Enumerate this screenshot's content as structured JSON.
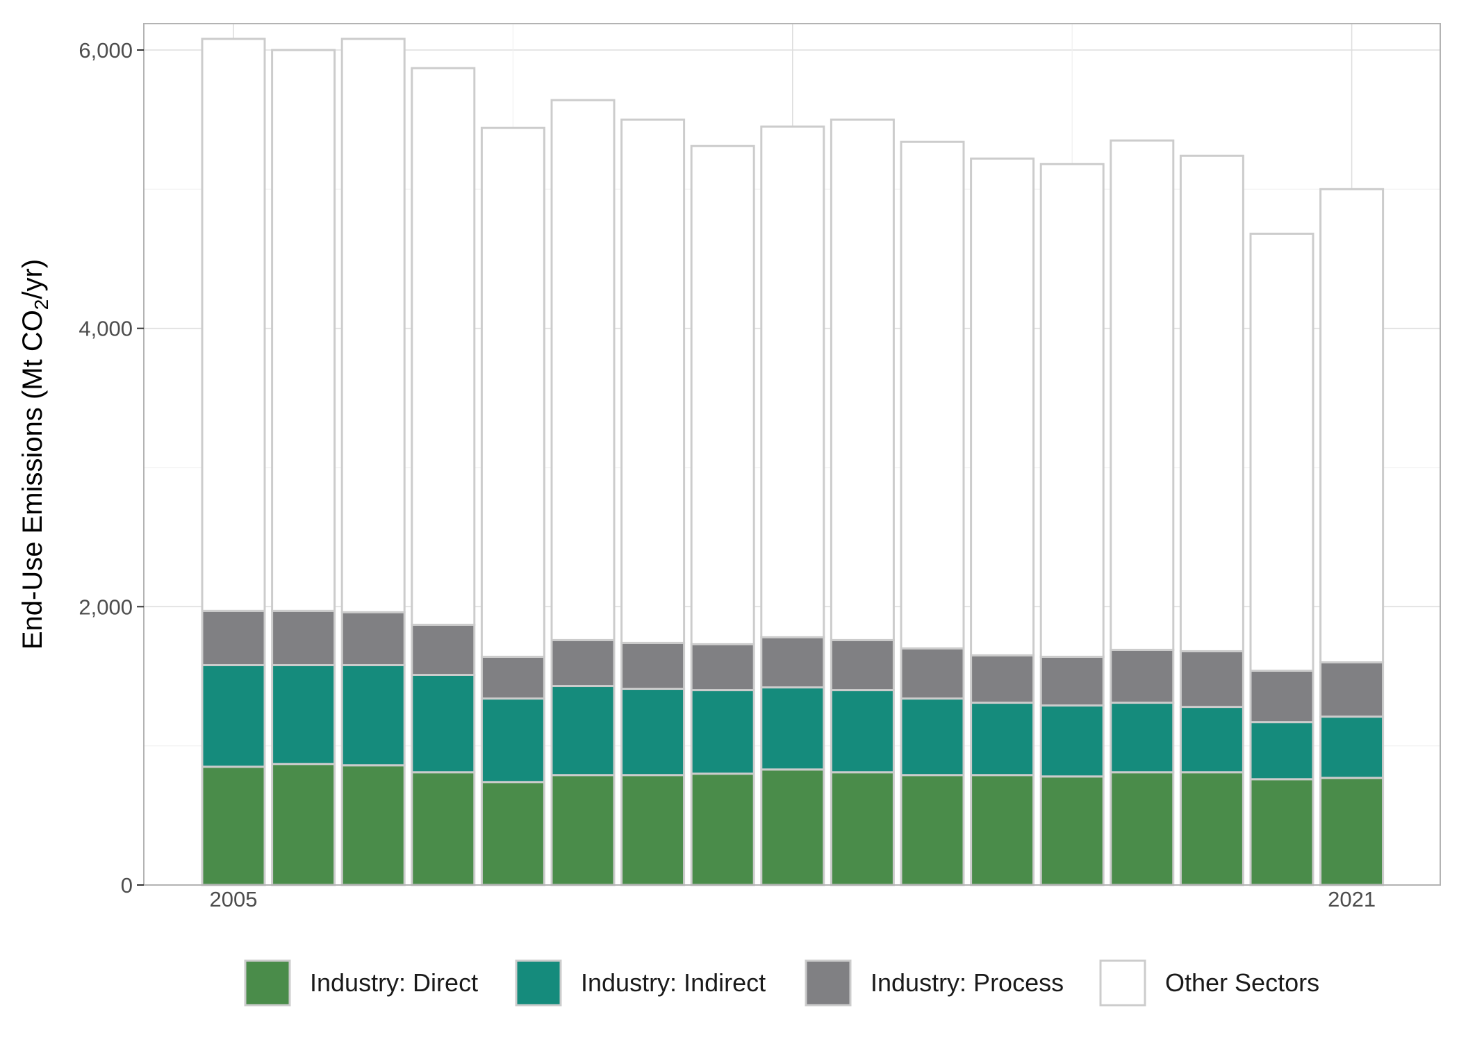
{
  "chart_data": {
    "type": "bar",
    "stacked": true,
    "ylabel": {
      "prefix": "End-Use Emissions (Mt CO",
      "subscript": "2",
      "suffix": "/yr)"
    },
    "xlabel": "",
    "ylim": [
      0,
      6200
    ],
    "yticks": [
      0,
      2000,
      4000,
      6000
    ],
    "ytick_labels": [
      "0",
      "2,000",
      "4,000",
      "6,000"
    ],
    "categories": [
      2005,
      2006,
      2007,
      2008,
      2009,
      2010,
      2011,
      2012,
      2013,
      2014,
      2015,
      2016,
      2017,
      2018,
      2019,
      2020,
      2021
    ],
    "xtick_labels": [
      {
        "year": 2005,
        "label": "2005"
      },
      {
        "year": 2021,
        "label": "2021"
      }
    ],
    "grid": true,
    "legend_position": "bottom",
    "series": [
      {
        "name": "Industry: Direct",
        "color": "#4a8c4a",
        "values": [
          850,
          870,
          860,
          810,
          740,
          790,
          790,
          800,
          830,
          810,
          790,
          790,
          780,
          810,
          810,
          760,
          770
        ]
      },
      {
        "name": "Industry: Indirect",
        "color": "#158b7c",
        "values": [
          730,
          710,
          720,
          700,
          600,
          640,
          620,
          600,
          590,
          590,
          550,
          520,
          510,
          500,
          470,
          410,
          440
        ]
      },
      {
        "name": "Industry: Process",
        "color": "#808083",
        "values": [
          390,
          390,
          380,
          360,
          300,
          330,
          330,
          330,
          360,
          360,
          360,
          340,
          350,
          380,
          400,
          370,
          390
        ]
      },
      {
        "name": "Other Sectors",
        "color": "#ffffff",
        "values": [
          4110,
          4030,
          4120,
          4000,
          3800,
          3880,
          3760,
          3580,
          3670,
          3740,
          3640,
          3570,
          3540,
          3660,
          3560,
          3140,
          3400
        ]
      }
    ]
  }
}
